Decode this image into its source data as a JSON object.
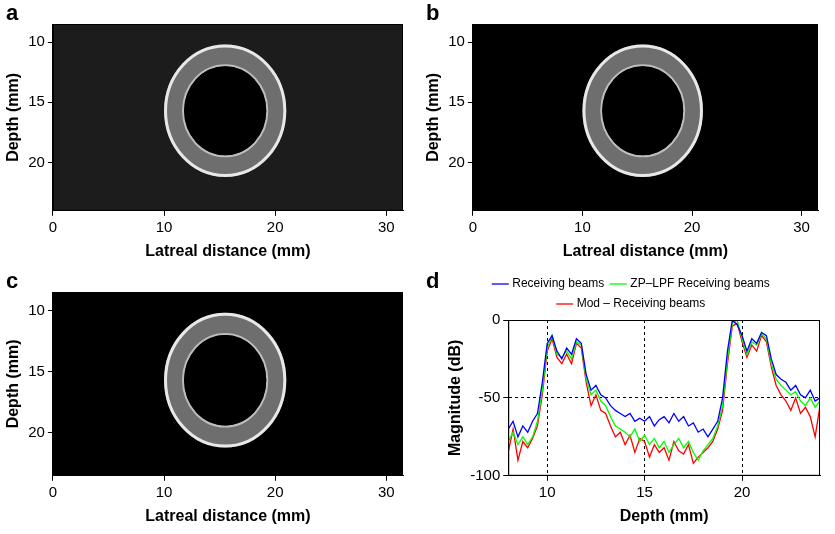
{
  "chart_data": [
    {
      "panel": "a",
      "type": "image",
      "xlabel": "Latreal distance (mm)",
      "ylabel": "Depth (mm)",
      "xlim": [
        0,
        31.5
      ],
      "xticks": [
        0,
        10,
        20,
        30
      ],
      "ylim": [
        24,
        8.5
      ],
      "yticks": [
        10,
        15,
        20
      ],
      "color": "#1c1c1c",
      "ring": {
        "center_x": 15.5,
        "center_depth": 15.7,
        "outer_radius": 5.5,
        "inner_radius": 3.7
      }
    },
    {
      "panel": "b",
      "type": "image",
      "xlabel": "Latreal distance (mm)",
      "ylabel": "Depth (mm)",
      "xlim": [
        0,
        31.5
      ],
      "xticks": [
        0,
        10,
        20,
        30
      ],
      "ylim": [
        24,
        8.5
      ],
      "yticks": [
        10,
        15,
        20
      ],
      "color": "#000000",
      "ring": {
        "center_x": 15.5,
        "center_depth": 15.7,
        "outer_radius": 5.5,
        "inner_radius": 3.7
      }
    },
    {
      "panel": "c",
      "type": "image",
      "xlabel": "Latreal distance (mm)",
      "ylabel": "Depth (mm)",
      "xlim": [
        0,
        31.5
      ],
      "xticks": [
        0,
        10,
        20,
        30
      ],
      "ylim": [
        23.5,
        8.5
      ],
      "yticks": [
        10,
        15,
        20
      ],
      "color": "#000000",
      "ring": {
        "center_x": 15.5,
        "center_depth": 15.7,
        "outer_radius": 5.5,
        "inner_radius": 3.7
      }
    },
    {
      "panel": "d",
      "type": "line",
      "xlabel": "Depth (mm)",
      "ylabel": "Magnitude (dB)",
      "xlim": [
        8,
        24
      ],
      "xticks": [
        10,
        15,
        20
      ],
      "ylim": [
        -100,
        0
      ],
      "yticks": [
        -100,
        -50,
        0
      ],
      "grid": true,
      "legend": "top",
      "x": [
        8,
        8.25,
        8.5,
        8.75,
        9,
        9.25,
        9.5,
        9.75,
        10,
        10.25,
        10.5,
        10.75,
        11,
        11.25,
        11.5,
        11.75,
        12,
        12.25,
        12.5,
        12.75,
        13,
        13.25,
        13.5,
        13.75,
        14,
        14.25,
        14.5,
        14.75,
        15,
        15.25,
        15.5,
        15.75,
        16,
        16.25,
        16.5,
        16.75,
        17,
        17.25,
        17.5,
        17.75,
        18,
        18.25,
        18.5,
        18.75,
        19,
        19.25,
        19.5,
        19.75,
        20,
        20.25,
        20.5,
        20.75,
        21,
        21.25,
        21.5,
        21.75,
        22,
        22.25,
        22.5,
        22.75,
        23,
        23.25,
        23.5,
        23.75,
        24
      ],
      "series": [
        {
          "name": "Receiving beams",
          "color": "#0000ff",
          "values": [
            -70,
            -65,
            -75,
            -68,
            -72,
            -65,
            -60,
            -40,
            -15,
            -10,
            -20,
            -25,
            -18,
            -22,
            -12,
            -15,
            -35,
            -45,
            -42,
            -48,
            -50,
            -55,
            -58,
            -60,
            -62,
            -60,
            -65,
            -63,
            -65,
            -62,
            -68,
            -64,
            -62,
            -66,
            -60,
            -65,
            -62,
            -68,
            -66,
            -72,
            -70,
            -75,
            -70,
            -65,
            -50,
            -20,
            0,
            -3,
            -10,
            -20,
            -12,
            -15,
            -8,
            -10,
            -25,
            -35,
            -38,
            -40,
            -45,
            -42,
            -48,
            -50,
            -45,
            -52,
            -50
          ]
        },
        {
          "name": "ZP–LPF Receiving beams",
          "color": "#00ff00",
          "values": [
            -78,
            -72,
            -80,
            -75,
            -80,
            -75,
            -65,
            -45,
            -18,
            -10,
            -22,
            -24,
            -20,
            -25,
            -14,
            -16,
            -38,
            -48,
            -45,
            -52,
            -55,
            -62,
            -68,
            -70,
            -72,
            -75,
            -70,
            -78,
            -74,
            -80,
            -76,
            -82,
            -78,
            -85,
            -80,
            -76,
            -82,
            -78,
            -85,
            -90,
            -84,
            -80,
            -76,
            -68,
            -55,
            -25,
            -2,
            0,
            -12,
            -22,
            -14,
            -16,
            -9,
            -12,
            -28,
            -38,
            -42,
            -45,
            -48,
            -46,
            -52,
            -55,
            -50,
            -56,
            -52
          ]
        },
        {
          "name": "Mod – Receiving beams",
          "color": "#ff0000",
          "values": [
            -85,
            -70,
            -90,
            -78,
            -82,
            -76,
            -68,
            -48,
            -20,
            -12,
            -24,
            -28,
            -22,
            -28,
            -15,
            -18,
            -40,
            -55,
            -48,
            -58,
            -60,
            -68,
            -75,
            -72,
            -80,
            -74,
            -85,
            -76,
            -78,
            -88,
            -80,
            -85,
            -82,
            -90,
            -78,
            -84,
            -86,
            -80,
            -92,
            -88,
            -85,
            -82,
            -78,
            -70,
            -58,
            -28,
            -4,
            -2,
            -14,
            -24,
            -16,
            -20,
            -10,
            -14,
            -30,
            -42,
            -48,
            -52,
            -58,
            -50,
            -60,
            -56,
            -62,
            -75,
            -55
          ]
        }
      ]
    }
  ]
}
